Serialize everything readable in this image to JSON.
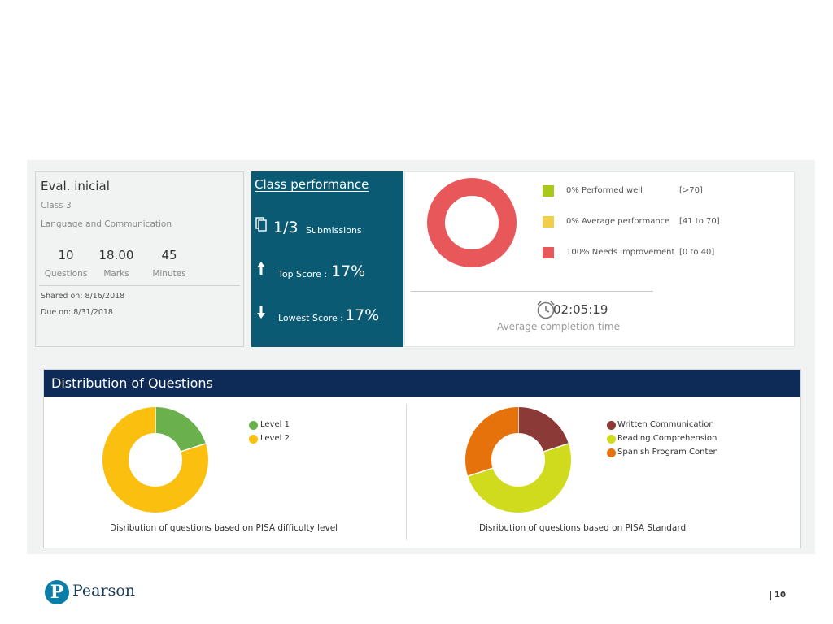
{
  "eval": {
    "title": "Eval. inicial",
    "class": "Class 3",
    "subject": "Language and Communication",
    "stats": [
      {
        "value": "10",
        "label": "Questions"
      },
      {
        "value": "18.00",
        "label": "Marks"
      },
      {
        "value": "45",
        "label": "Minutes"
      }
    ],
    "shared": "Shared on: 8/16/2018",
    "due": "Due on: 8/31/2018"
  },
  "class_performance": {
    "title": "Class performance",
    "submissions_value": "1/3",
    "submissions_label": "Submissions",
    "top_label": "Top Score :",
    "top_value": "17%",
    "lowest_label": "Lowest Score :",
    "lowest_value": "17%"
  },
  "performance_legend": [
    {
      "label": "0% Performed well",
      "range": "[>70]",
      "color": "#a9c81d"
    },
    {
      "label": "0% Average performance",
      "range": "[41 to 70]",
      "color": "#f0cd4a"
    },
    {
      "label": "100% Needs improvement",
      "range": "[0 to 40]",
      "color": "#e8585b"
    }
  ],
  "completion": {
    "time": "02:05:19",
    "label": "Average completion time"
  },
  "distribution": {
    "title": "Distribution of Questions",
    "difficulty_caption": "Disribution of questions based on PISA difficulty level",
    "standard_caption": "Disribution of questions based on PISA Standard"
  },
  "chart_data": [
    {
      "type": "pie",
      "labels": [
        "Performed well",
        "Average performance",
        "Needs improvement"
      ],
      "values": [
        0,
        0,
        100
      ],
      "colors": [
        "#a9c81d",
        "#f0cd4a",
        "#e8585b"
      ]
    },
    {
      "type": "pie",
      "labels": [
        "Level 1",
        "Level 2"
      ],
      "values": [
        2,
        8
      ],
      "colors": [
        "#6ab04c",
        "#fbbf10"
      ]
    },
    {
      "type": "pie",
      "labels": [
        "Written Communication",
        "Reading Comprehension",
        "Spanish Program Conten"
      ],
      "values": [
        2,
        5,
        3
      ],
      "colors": [
        "#8c3a38",
        "#d1db1d",
        "#e6720c"
      ]
    }
  ],
  "footer": {
    "brand": "Pearson",
    "page": "10"
  }
}
